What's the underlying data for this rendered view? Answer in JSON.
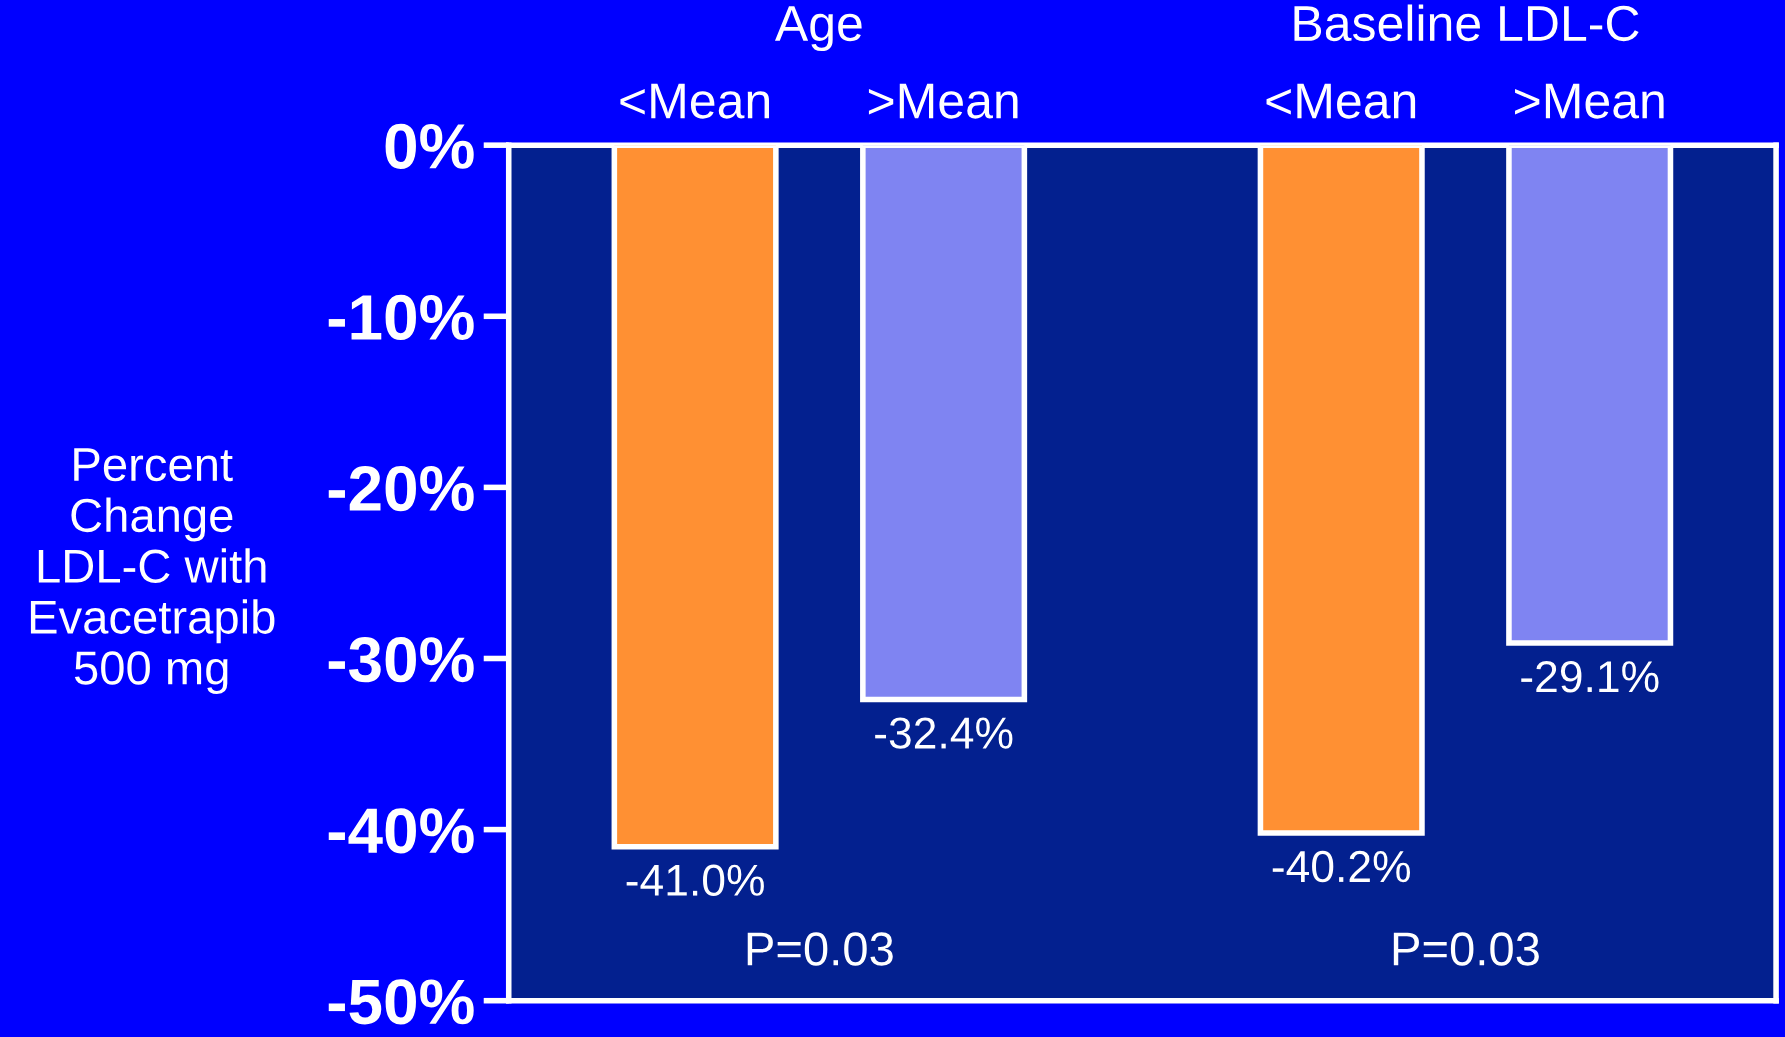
{
  "chart_data": {
    "type": "bar",
    "categories": [
      "<Mean",
      ">Mean",
      "<Mean",
      ">Mean"
    ],
    "values": [
      -41.0,
      -32.4,
      -40.2,
      -29.1
    ],
    "colors": [
      "#ff9033",
      "#7f84f2",
      "#ff9033",
      "#7f84f2"
    ],
    "value_labels": [
      "-41.0%",
      "-32.4%",
      "-40.2%",
      "-29.1%"
    ],
    "ylabel": "Percent\nChange\nLDL-C with\nEvacetrapib\n500 mg",
    "ylim": [
      -50,
      0
    ],
    "yticks": [
      {
        "value": 0,
        "label": "0%"
      },
      {
        "value": -10,
        "label": "-10%"
      },
      {
        "value": -20,
        "label": "-20%"
      },
      {
        "value": -30,
        "label": "-30%"
      },
      {
        "value": -40,
        "label": "-40%"
      },
      {
        "value": -50,
        "label": "-50%"
      }
    ],
    "annotations": [
      "Age",
      "Baseline LDL-C",
      "P=0.03",
      "P=0.03"
    ],
    "grid": false,
    "legend": false
  }
}
